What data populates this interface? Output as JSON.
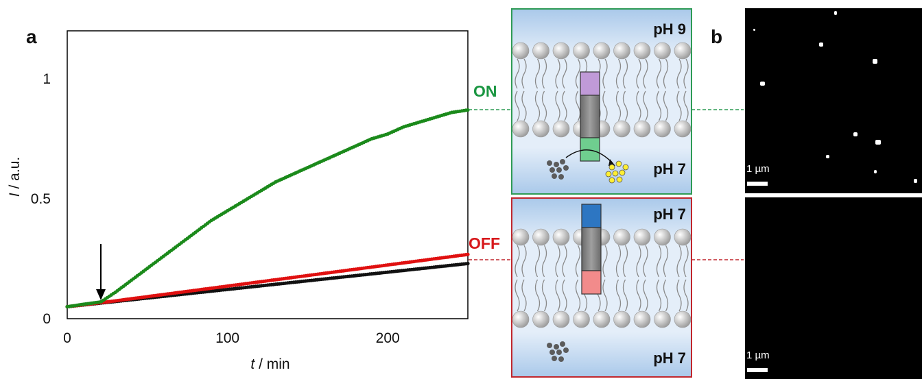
{
  "panels": {
    "a": "a",
    "b": "b"
  },
  "states": {
    "on": {
      "label": "ON",
      "color": "#1a9641"
    },
    "off": {
      "label": "OFF",
      "color": "#d7191c"
    }
  },
  "schematic": {
    "top_box": {
      "ph_top": "pH 9",
      "ph_bottom": "pH 7",
      "border": "#2e9b55",
      "caps": [
        "#c09ad8",
        "#6fce8f"
      ]
    },
    "bottom_box": {
      "ph_top": "pH 7",
      "ph_bottom": "pH 7",
      "border": "#c1272d",
      "caps": [
        "#2d76c2",
        "#f28b8b"
      ]
    }
  },
  "microscopy": {
    "scale_label_top": "1 µm",
    "scale_label_bottom": "1 µm"
  },
  "chart_data": {
    "type": "scatter",
    "xlabel_italic": "t",
    "xlabel_rest": " / min",
    "ylabel_italic": "I",
    "ylabel_rest": " / a.u.",
    "xlim": [
      0,
      250
    ],
    "ylim": [
      0,
      1.2
    ],
    "xticks": [
      0,
      100,
      200
    ],
    "yticks": [
      0,
      0.5,
      1
    ],
    "ytick_labels": [
      "0",
      "0.5",
      "1"
    ],
    "grid": false,
    "arrow_at_x": 21,
    "series": [
      {
        "color": "#1b8a1b",
        "x": [
          0,
          10,
          21,
          30,
          40,
          50,
          60,
          70,
          80,
          90,
          100,
          110,
          120,
          130,
          140,
          150,
          160,
          170,
          180,
          190,
          200,
          210,
          220,
          230,
          240,
          250
        ],
        "values": [
          0.05,
          0.06,
          0.07,
          0.11,
          0.16,
          0.21,
          0.26,
          0.31,
          0.36,
          0.41,
          0.45,
          0.49,
          0.53,
          0.57,
          0.6,
          0.63,
          0.66,
          0.69,
          0.72,
          0.75,
          0.77,
          0.8,
          0.82,
          0.84,
          0.86,
          0.87
        ]
      },
      {
        "color": "#e01010",
        "x": [
          0,
          25,
          50,
          75,
          100,
          125,
          150,
          175,
          200,
          225,
          250
        ],
        "values": [
          0.05,
          0.07,
          0.092,
          0.114,
          0.136,
          0.158,
          0.18,
          0.202,
          0.224,
          0.246,
          0.268
        ]
      },
      {
        "color": "#111111",
        "x": [
          0,
          25,
          50,
          75,
          100,
          125,
          150,
          175,
          200,
          225,
          250
        ],
        "values": [
          0.05,
          0.068,
          0.086,
          0.104,
          0.122,
          0.14,
          0.158,
          0.176,
          0.194,
          0.212,
          0.23
        ]
      }
    ]
  }
}
